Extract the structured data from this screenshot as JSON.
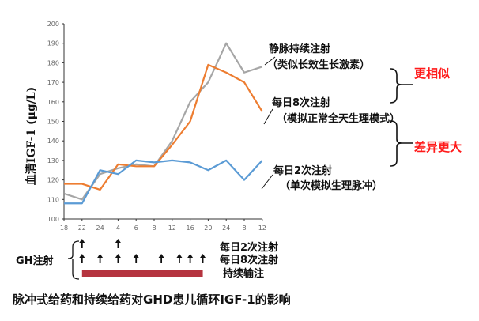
{
  "chart_data": {
    "type": "line",
    "title": "脉冲式给药和持续给药对GHD患儿循环IGF-1的影响",
    "ylabel": "血清IGF-1 (μg/L)",
    "xlabel": "",
    "categories": [
      "18",
      "22",
      "24",
      "4",
      "6",
      "8",
      "12",
      "16",
      "20",
      "24",
      "8",
      "12"
    ],
    "ylim": [
      100,
      200
    ],
    "yticks": [
      100,
      110,
      120,
      130,
      140,
      150,
      160,
      170,
      180,
      190,
      200
    ],
    "grid": false,
    "series": [
      {
        "name": "静脉持续注射",
        "color": "#a6a6a6",
        "values": [
          113,
          110,
          123,
          126,
          128,
          127,
          140,
          160,
          170,
          190,
          175,
          178
        ]
      },
      {
        "name": "每日8次注射",
        "color": "#ed7d31",
        "values": [
          118,
          118,
          115,
          128,
          127,
          127,
          138,
          150,
          179,
          175,
          170,
          155
        ]
      },
      {
        "name": "每日2次注射",
        "color": "#5b9bd5",
        "values": [
          108,
          108,
          125,
          123,
          130,
          129,
          130,
          129,
          125,
          130,
          120,
          130
        ]
      }
    ],
    "annotations": {
      "iv": {
        "line1": "静脉持续注射",
        "line2": "（类似长效生长激素）"
      },
      "eight": {
        "line1": "每日8次注射",
        "line2": "（模拟正常全天生理模式）"
      },
      "two": {
        "line1": "每日2次注射",
        "line2": "（单次模拟生理脉冲）"
      },
      "similar": "更相似",
      "different": "差异更大"
    },
    "schedule": {
      "label": "GH注射",
      "rows": [
        {
          "label": "每日2次注射",
          "arrows_at_category_index": [
            1,
            3
          ]
        },
        {
          "label": "每日8次注射",
          "arrows_at_category_index": [
            1,
            2,
            3,
            4,
            5.4,
            6.4,
            7,
            7.7
          ]
        },
        {
          "label": "持续输注",
          "bar_from_category_index": 1,
          "bar_to_category_index": 7.7,
          "color": "#b5343f"
        }
      ]
    }
  }
}
